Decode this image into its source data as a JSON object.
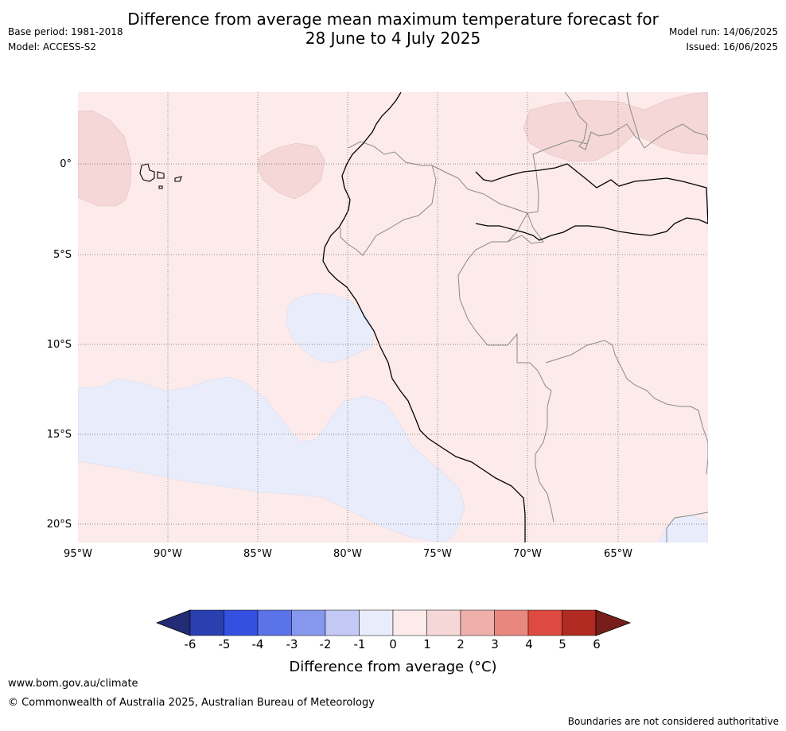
{
  "header": {
    "title_line1": "Difference from average mean maximum temperature forecast for",
    "title_line2": "28 June to 4 July 2025",
    "base_period": "Base period: 1981-2018",
    "model": "Model: ACCESS-S2",
    "model_run": "Model run: 14/06/2025",
    "issued": "Issued: 16/06/2025"
  },
  "map": {
    "lat_labels": [
      "0°",
      "5°S",
      "10°S",
      "15°S",
      "20°S"
    ],
    "lon_labels": [
      "95°W",
      "90°W",
      "85°W",
      "80°W",
      "75°W",
      "70°W",
      "65°W"
    ],
    "background_color": "#fcebea",
    "cool_color": "#e9ecfb",
    "warm_color": "#f4d7d6"
  },
  "colorbar": {
    "ticks": [
      "-6",
      "-5",
      "-4",
      "-3",
      "-2",
      "-1",
      "0",
      "1",
      "2",
      "3",
      "4",
      "5",
      "6"
    ],
    "colors": [
      "#232d75",
      "#2a3fb0",
      "#3450e0",
      "#5b73e8",
      "#8598ee",
      "#c3c9f4",
      "#e9ecfb",
      "#fcebea",
      "#f4d7d6",
      "#efafaa",
      "#e8877d",
      "#dc4a40",
      "#b02a22",
      "#781e1a"
    ],
    "label": "Difference from average (°C)"
  },
  "footer": {
    "website": "www.bom.gov.au/climate",
    "copyright": "© Commonwealth of Australia 2025, Australian Bureau of Meteorology",
    "disclaimer": "Boundaries are not considered authoritative"
  }
}
